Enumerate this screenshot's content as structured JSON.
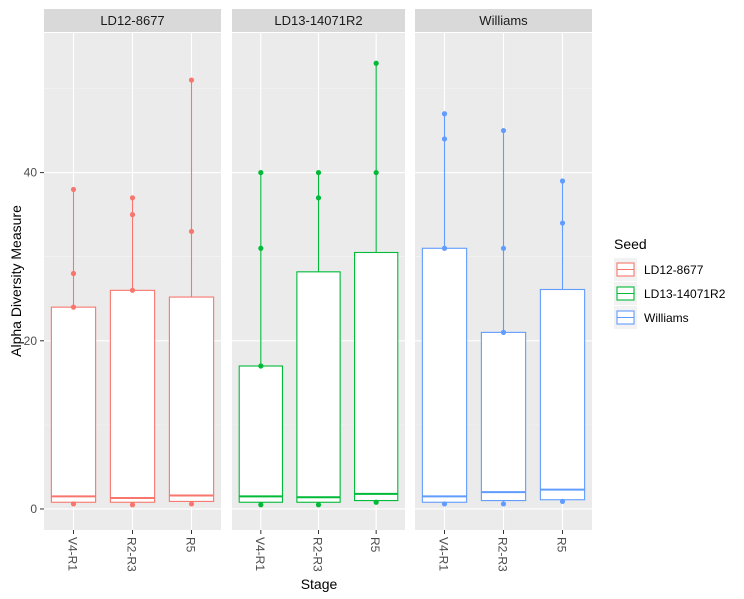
{
  "chart_data": {
    "type": "boxplot",
    "xlabel": "Stage",
    "ylabel": "Alpha Diversity Measure",
    "ylim": [
      -2.5,
      56.6
    ],
    "yticks": [
      0,
      20,
      40
    ],
    "categories": [
      "V4-R1",
      "R2-R3",
      "R5"
    ],
    "legend": {
      "title": "Seed",
      "position": "right"
    },
    "grid": true,
    "panels": [
      {
        "name": "LD12-8677",
        "color": "#F8766D",
        "boxes": [
          {
            "stage": "V4-R1",
            "q1": 0.8,
            "median": 1.5,
            "q3": 24,
            "whisker_low": 0.6,
            "whisker_high": 38,
            "outliers": [
              0.6,
              24,
              28,
              38
            ]
          },
          {
            "stage": "R2-R3",
            "q1": 0.8,
            "median": 1.3,
            "q3": 26,
            "whisker_low": 0.5,
            "whisker_high": 37,
            "outliers": [
              0.5,
              26,
              35,
              37
            ]
          },
          {
            "stage": "R5",
            "q1": 0.9,
            "median": 1.6,
            "q3": 25.2,
            "whisker_low": 0.6,
            "whisker_high": 51,
            "outliers": [
              0.6,
              33,
              51
            ]
          }
        ]
      },
      {
        "name": "LD13-14071R2",
        "color": "#00BA38",
        "boxes": [
          {
            "stage": "V4-R1",
            "q1": 0.8,
            "median": 1.5,
            "q3": 17,
            "whisker_low": 0.5,
            "whisker_high": 40,
            "outliers": [
              0.5,
              17,
              31,
              40
            ]
          },
          {
            "stage": "R2-R3",
            "q1": 0.8,
            "median": 1.4,
            "q3": 28.2,
            "whisker_low": 0.5,
            "whisker_high": 40,
            "outliers": [
              0.5,
              37,
              40
            ]
          },
          {
            "stage": "R5",
            "q1": 1.0,
            "median": 1.8,
            "q3": 30.5,
            "whisker_low": 0.8,
            "whisker_high": 53,
            "outliers": [
              0.8,
              40,
              53
            ]
          }
        ]
      },
      {
        "name": "Williams",
        "color": "#619CFF",
        "boxes": [
          {
            "stage": "V4-R1",
            "q1": 0.8,
            "median": 1.5,
            "q3": 31,
            "whisker_low": 0.6,
            "whisker_high": 47,
            "outliers": [
              0.6,
              31,
              44,
              47
            ]
          },
          {
            "stage": "R2-R3",
            "q1": 1.0,
            "median": 2.0,
            "q3": 21,
            "whisker_low": 0.6,
            "whisker_high": 45,
            "outliers": [
              0.6,
              21,
              31,
              45
            ]
          },
          {
            "stage": "R5",
            "q1": 1.1,
            "median": 2.3,
            "q3": 26.1,
            "whisker_low": 0.9,
            "whisker_high": 39,
            "outliers": [
              0.9,
              34,
              39
            ]
          }
        ]
      }
    ]
  }
}
